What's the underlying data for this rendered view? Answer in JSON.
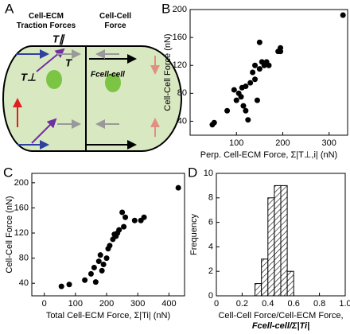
{
  "diagram": {
    "panel_label": "A",
    "left_title": "Cell-ECM\nTraction Forces",
    "right_title": "Cell-Cell\nForce",
    "t_parallel": "T∥",
    "t_total": "T",
    "t_perp": "T⊥",
    "f_cell": "Fcell-cell"
  },
  "chart_data": [
    {
      "type": "scatter",
      "panel_label": "B",
      "xlabel": "Perp. Cell-ECM Force, Σ|T⊥,i| (nN)",
      "ylabel": "Cell-Cell Force (nN)",
      "x": [
        48,
        52,
        80,
        95,
        100,
        105,
        110,
        112,
        115,
        120,
        125,
        120,
        130,
        135,
        140,
        140,
        145,
        150,
        150,
        155,
        160,
        165,
        170,
        190,
        195,
        195,
        330
      ],
      "values": [
        35,
        38,
        55,
        85,
        70,
        80,
        75,
        88,
        62,
        55,
        42,
        90,
        95,
        110,
        100,
        120,
        70,
        115,
        153,
        125,
        120,
        125,
        120,
        140,
        145,
        140,
        192
      ],
      "xlim": [
        0,
        340
      ],
      "ylim": [
        20,
        200
      ],
      "xticks": [
        100,
        200,
        300
      ],
      "yticks": [
        40,
        80,
        120,
        160,
        200
      ],
      "color": "#000000"
    },
    {
      "type": "scatter",
      "panel_label": "C",
      "xlabel": "Total Cell-ECM Force, Σ|Ti| (nN)",
      "ylabel": "Cell-Cell Force (nN)",
      "x": [
        55,
        80,
        130,
        150,
        160,
        165,
        175,
        180,
        185,
        190,
        200,
        205,
        210,
        220,
        225,
        230,
        235,
        240,
        250,
        255,
        260,
        290,
        310,
        320,
        430
      ],
      "values": [
        35,
        38,
        45,
        55,
        65,
        42,
        75,
        85,
        60,
        70,
        80,
        95,
        100,
        110,
        118,
        115,
        120,
        125,
        153,
        130,
        145,
        140,
        140,
        145,
        192
      ],
      "xlim": [
        -40,
        450
      ],
      "ylim": [
        20,
        215
      ],
      "xticks": [
        0,
        100,
        200,
        300,
        400
      ],
      "yticks": [
        40,
        80,
        120,
        160,
        200
      ],
      "color": "#000000"
    },
    {
      "type": "histogram",
      "panel_label": "D",
      "xlabel": "Cell-Cell Force/Cell-ECM Force,",
      "xlabel2": "Fcell-cell/Σ|Ti|",
      "ylabel": "Frequency",
      "bins": [
        0.3,
        0.35,
        0.4,
        0.45,
        0.5,
        0.55,
        0.6
      ],
      "values": [
        1,
        3,
        8,
        9,
        9,
        2
      ],
      "xlim": [
        0,
        1
      ],
      "ylim": [
        0,
        10
      ],
      "xticks": [
        0,
        0.2,
        0.4,
        0.6,
        0.8,
        {
          "value": 1,
          "label": "1.0"
        }
      ],
      "yticks": [
        0,
        2,
        4,
        6,
        8,
        10
      ],
      "color": "#000000"
    }
  ]
}
